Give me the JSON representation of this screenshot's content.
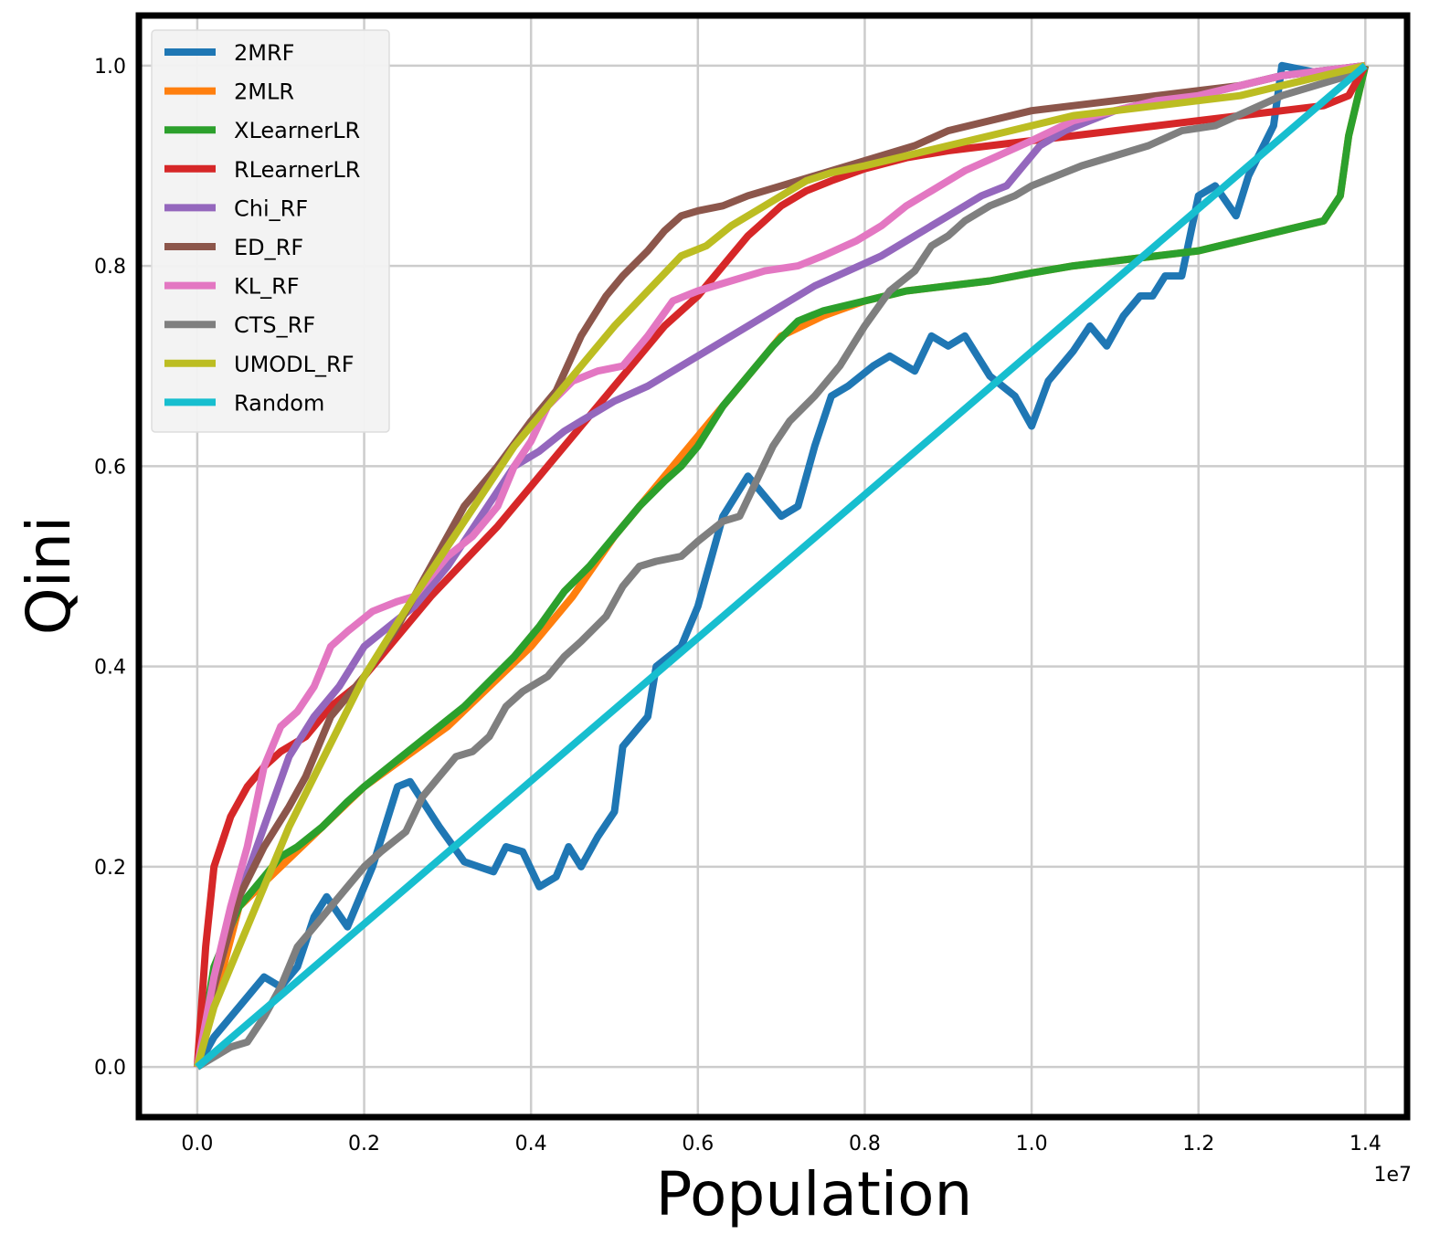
{
  "chart_data": {
    "type": "line",
    "title": "",
    "xlabel": "Population",
    "ylabel": "Qini",
    "x_offset_label": "1e7",
    "xlim": [
      -0.07,
      1.45
    ],
    "ylim": [
      -0.05,
      1.05
    ],
    "x_ticks": [
      0.0,
      0.2,
      0.4,
      0.6,
      0.8,
      1.0,
      1.2,
      1.4
    ],
    "x_tick_labels": [
      "0.0",
      "0.2",
      "0.4",
      "0.6",
      "0.8",
      "1.0",
      "1.2",
      "1.4"
    ],
    "y_ticks": [
      0.0,
      0.2,
      0.4,
      0.6,
      0.8,
      1.0
    ],
    "y_tick_labels": [
      "0.0",
      "0.2",
      "0.4",
      "0.6",
      "0.8",
      "1.0"
    ],
    "grid": true,
    "legend_position": "top-left",
    "series": [
      {
        "name": "2MRF",
        "color": "#1f77b4",
        "x": [
          0,
          0.02,
          0.05,
          0.08,
          0.1,
          0.12,
          0.14,
          0.155,
          0.18,
          0.21,
          0.24,
          0.255,
          0.29,
          0.32,
          0.355,
          0.37,
          0.39,
          0.41,
          0.43,
          0.445,
          0.46,
          0.48,
          0.5,
          0.51,
          0.54,
          0.55,
          0.58,
          0.6,
          0.63,
          0.66,
          0.68,
          0.7,
          0.72,
          0.74,
          0.76,
          0.78,
          0.81,
          0.83,
          0.86,
          0.88,
          0.9,
          0.92,
          0.95,
          0.98,
          1.0,
          1.02,
          1.05,
          1.07,
          1.09,
          1.11,
          1.13,
          1.145,
          1.16,
          1.18,
          1.2,
          1.22,
          1.245,
          1.26,
          1.29,
          1.3,
          1.33,
          1.36,
          1.4
        ],
        "y": [
          0.0,
          0.03,
          0.06,
          0.09,
          0.08,
          0.1,
          0.15,
          0.17,
          0.14,
          0.2,
          0.28,
          0.285,
          0.24,
          0.205,
          0.195,
          0.22,
          0.215,
          0.18,
          0.19,
          0.22,
          0.2,
          0.23,
          0.255,
          0.32,
          0.35,
          0.4,
          0.42,
          0.46,
          0.55,
          0.59,
          0.57,
          0.55,
          0.56,
          0.62,
          0.67,
          0.68,
          0.7,
          0.71,
          0.695,
          0.73,
          0.72,
          0.73,
          0.69,
          0.67,
          0.64,
          0.685,
          0.715,
          0.74,
          0.72,
          0.75,
          0.77,
          0.77,
          0.79,
          0.79,
          0.87,
          0.88,
          0.85,
          0.89,
          0.94,
          1.0,
          0.995,
          0.99,
          1.0
        ]
      },
      {
        "name": "2MLR",
        "color": "#ff7f0e",
        "x": [
          0,
          0.05,
          0.1,
          0.15,
          0.2,
          0.25,
          0.3,
          0.35,
          0.4,
          0.45,
          0.5,
          0.55,
          0.6,
          0.65,
          0.7,
          0.75,
          0.8,
          0.85,
          0.9,
          0.95,
          1.0,
          1.05,
          1.1,
          1.15,
          1.2,
          1.25,
          1.3,
          1.35,
          1.37,
          1.38,
          1.4
        ],
        "y": [
          0.0,
          0.16,
          0.2,
          0.24,
          0.28,
          0.31,
          0.34,
          0.38,
          0.42,
          0.47,
          0.53,
          0.58,
          0.63,
          0.68,
          0.73,
          0.75,
          0.765,
          0.775,
          0.78,
          0.785,
          0.793,
          0.8,
          0.805,
          0.81,
          0.815,
          0.825,
          0.835,
          0.845,
          0.87,
          0.93,
          1.0
        ]
      },
      {
        "name": "XLearnerLR",
        "color": "#2ca02c",
        "x": [
          0,
          0.02,
          0.05,
          0.08,
          0.1,
          0.12,
          0.15,
          0.18,
          0.2,
          0.23,
          0.26,
          0.29,
          0.32,
          0.35,
          0.38,
          0.41,
          0.44,
          0.47,
          0.5,
          0.53,
          0.56,
          0.58,
          0.6,
          0.63,
          0.66,
          0.69,
          0.72,
          0.75,
          0.8,
          0.85,
          0.9,
          0.95,
          1.0,
          1.05,
          1.1,
          1.15,
          1.2,
          1.25,
          1.3,
          1.35,
          1.37,
          1.38,
          1.4
        ],
        "y": [
          0.0,
          0.1,
          0.16,
          0.19,
          0.21,
          0.22,
          0.24,
          0.265,
          0.28,
          0.3,
          0.32,
          0.34,
          0.36,
          0.385,
          0.41,
          0.44,
          0.475,
          0.5,
          0.53,
          0.56,
          0.585,
          0.6,
          0.62,
          0.66,
          0.69,
          0.72,
          0.745,
          0.755,
          0.765,
          0.775,
          0.78,
          0.785,
          0.793,
          0.8,
          0.805,
          0.81,
          0.815,
          0.825,
          0.835,
          0.845,
          0.87,
          0.93,
          1.0
        ]
      },
      {
        "name": "RLearnerLR",
        "color": "#d62728",
        "x": [
          0,
          0.01,
          0.02,
          0.04,
          0.06,
          0.08,
          0.1,
          0.13,
          0.16,
          0.19,
          0.21,
          0.24,
          0.28,
          0.32,
          0.36,
          0.4,
          0.44,
          0.48,
          0.52,
          0.56,
          0.6,
          0.62,
          0.64,
          0.66,
          0.68,
          0.7,
          0.73,
          0.76,
          0.8,
          0.85,
          0.9,
          0.95,
          1.0,
          1.05,
          1.1,
          1.15,
          1.2,
          1.25,
          1.3,
          1.35,
          1.38,
          1.4
        ],
        "y": [
          0.0,
          0.12,
          0.2,
          0.25,
          0.28,
          0.3,
          0.315,
          0.33,
          0.36,
          0.38,
          0.4,
          0.43,
          0.47,
          0.505,
          0.54,
          0.58,
          0.62,
          0.66,
          0.7,
          0.74,
          0.77,
          0.79,
          0.81,
          0.83,
          0.845,
          0.86,
          0.875,
          0.885,
          0.897,
          0.908,
          0.915,
          0.92,
          0.925,
          0.93,
          0.935,
          0.94,
          0.945,
          0.95,
          0.955,
          0.96,
          0.97,
          1.0
        ]
      },
      {
        "name": "Chi_RF",
        "color": "#9467bd",
        "x": [
          0,
          0.02,
          0.05,
          0.08,
          0.11,
          0.14,
          0.17,
          0.2,
          0.23,
          0.26,
          0.3,
          0.34,
          0.38,
          0.41,
          0.44,
          0.47,
          0.5,
          0.54,
          0.58,
          0.62,
          0.66,
          0.7,
          0.74,
          0.78,
          0.82,
          0.86,
          0.9,
          0.94,
          0.97,
          0.99,
          1.01,
          1.04,
          1.07,
          1.1,
          1.15,
          1.2,
          1.25,
          1.3,
          1.35,
          1.4
        ],
        "y": [
          0.0,
          0.08,
          0.17,
          0.24,
          0.31,
          0.35,
          0.38,
          0.42,
          0.44,
          0.46,
          0.5,
          0.55,
          0.6,
          0.615,
          0.635,
          0.65,
          0.665,
          0.68,
          0.7,
          0.72,
          0.74,
          0.76,
          0.78,
          0.795,
          0.81,
          0.83,
          0.85,
          0.87,
          0.88,
          0.9,
          0.92,
          0.935,
          0.945,
          0.955,
          0.965,
          0.97,
          0.98,
          0.99,
          0.995,
          1.0
        ]
      },
      {
        "name": "ED_RF",
        "color": "#8c564b",
        "x": [
          0,
          0.02,
          0.05,
          0.08,
          0.11,
          0.13,
          0.16,
          0.2,
          0.24,
          0.28,
          0.32,
          0.36,
          0.4,
          0.43,
          0.46,
          0.49,
          0.51,
          0.54,
          0.56,
          0.58,
          0.6,
          0.63,
          0.66,
          0.7,
          0.74,
          0.78,
          0.82,
          0.86,
          0.9,
          0.95,
          1.0,
          1.05,
          1.1,
          1.15,
          1.2,
          1.25,
          1.3,
          1.35,
          1.4
        ],
        "y": [
          0.0,
          0.08,
          0.17,
          0.22,
          0.26,
          0.29,
          0.35,
          0.39,
          0.44,
          0.5,
          0.56,
          0.6,
          0.645,
          0.675,
          0.73,
          0.77,
          0.79,
          0.815,
          0.835,
          0.85,
          0.855,
          0.86,
          0.87,
          0.88,
          0.89,
          0.9,
          0.91,
          0.92,
          0.935,
          0.945,
          0.955,
          0.96,
          0.965,
          0.97,
          0.975,
          0.98,
          0.99,
          0.995,
          1.0
        ]
      },
      {
        "name": "KL_RF",
        "color": "#e377c2",
        "x": [
          0,
          0.02,
          0.04,
          0.06,
          0.08,
          0.1,
          0.12,
          0.14,
          0.16,
          0.18,
          0.21,
          0.24,
          0.26,
          0.28,
          0.3,
          0.33,
          0.36,
          0.38,
          0.4,
          0.42,
          0.45,
          0.48,
          0.51,
          0.54,
          0.57,
          0.6,
          0.64,
          0.68,
          0.72,
          0.75,
          0.79,
          0.82,
          0.85,
          0.88,
          0.92,
          0.96,
          1.0,
          1.05,
          1.1,
          1.15,
          1.2,
          1.25,
          1.3,
          1.35,
          1.4
        ],
        "y": [
          0.0,
          0.09,
          0.16,
          0.22,
          0.3,
          0.34,
          0.355,
          0.38,
          0.42,
          0.435,
          0.455,
          0.465,
          0.47,
          0.49,
          0.51,
          0.53,
          0.56,
          0.6,
          0.625,
          0.66,
          0.685,
          0.695,
          0.7,
          0.73,
          0.765,
          0.775,
          0.785,
          0.795,
          0.8,
          0.81,
          0.825,
          0.84,
          0.86,
          0.875,
          0.895,
          0.91,
          0.925,
          0.945,
          0.955,
          0.965,
          0.97,
          0.98,
          0.99,
          0.995,
          1.0
        ]
      },
      {
        "name": "CTS_RF",
        "color": "#7f7f7f",
        "x": [
          0,
          0.02,
          0.04,
          0.06,
          0.08,
          0.1,
          0.12,
          0.14,
          0.16,
          0.18,
          0.2,
          0.22,
          0.25,
          0.27,
          0.29,
          0.31,
          0.33,
          0.35,
          0.37,
          0.39,
          0.42,
          0.44,
          0.46,
          0.49,
          0.51,
          0.53,
          0.55,
          0.58,
          0.6,
          0.63,
          0.65,
          0.67,
          0.69,
          0.71,
          0.74,
          0.77,
          0.8,
          0.83,
          0.86,
          0.88,
          0.9,
          0.92,
          0.95,
          0.98,
          1.0,
          1.03,
          1.06,
          1.1,
          1.14,
          1.18,
          1.22,
          1.26,
          1.3,
          1.34,
          1.38,
          1.4
        ],
        "y": [
          0.0,
          0.01,
          0.02,
          0.025,
          0.05,
          0.08,
          0.12,
          0.14,
          0.16,
          0.18,
          0.2,
          0.215,
          0.235,
          0.27,
          0.29,
          0.31,
          0.315,
          0.33,
          0.36,
          0.375,
          0.39,
          0.41,
          0.425,
          0.45,
          0.48,
          0.5,
          0.505,
          0.51,
          0.525,
          0.545,
          0.55,
          0.585,
          0.62,
          0.645,
          0.67,
          0.7,
          0.74,
          0.775,
          0.795,
          0.82,
          0.83,
          0.845,
          0.86,
          0.87,
          0.88,
          0.89,
          0.9,
          0.91,
          0.92,
          0.935,
          0.94,
          0.955,
          0.97,
          0.98,
          0.99,
          1.0
        ]
      },
      {
        "name": "UMODL_RF",
        "color": "#bcbd22",
        "x": [
          0,
          0.02,
          0.05,
          0.08,
          0.11,
          0.14,
          0.17,
          0.2,
          0.23,
          0.26,
          0.3,
          0.34,
          0.38,
          0.42,
          0.46,
          0.5,
          0.54,
          0.58,
          0.61,
          0.64,
          0.67,
          0.7,
          0.73,
          0.76,
          0.8,
          0.85,
          0.9,
          0.95,
          1.0,
          1.05,
          1.1,
          1.15,
          1.2,
          1.25,
          1.3,
          1.35,
          1.4
        ],
        "y": [
          0.0,
          0.06,
          0.12,
          0.18,
          0.24,
          0.29,
          0.34,
          0.39,
          0.43,
          0.47,
          0.52,
          0.57,
          0.62,
          0.66,
          0.7,
          0.74,
          0.775,
          0.81,
          0.82,
          0.84,
          0.855,
          0.87,
          0.885,
          0.893,
          0.9,
          0.91,
          0.92,
          0.93,
          0.94,
          0.95,
          0.955,
          0.96,
          0.965,
          0.97,
          0.98,
          0.99,
          1.0
        ]
      },
      {
        "name": "Random",
        "color": "#17becf",
        "x": [
          0,
          1.4
        ],
        "y": [
          0.0,
          1.0
        ]
      }
    ]
  }
}
